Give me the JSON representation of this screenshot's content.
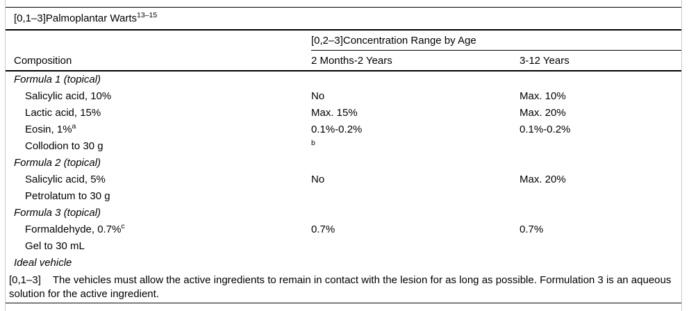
{
  "colors": {
    "background": "#ffffff",
    "text": "#000000",
    "rule": "#000000",
    "frame": "#c9c9c9"
  },
  "table": {
    "title": {
      "text": "[0,1–3]Palmoplantar Warts",
      "superscript": "13–15"
    },
    "header": {
      "spanner": "[0,2–3]Concentration Range by Age",
      "composition": "Composition",
      "age_col_1": "2 Months-2 Years",
      "age_col_2": "3-12 Years"
    },
    "rows": [
      {
        "type": "section",
        "label": "Formula 1 (topical)"
      },
      {
        "type": "item",
        "label": "Salicylic acid, 10%",
        "v1": "No",
        "v2": "Max. 10%"
      },
      {
        "type": "item",
        "label": "Lactic acid, 15%",
        "v1": "Max. 15%",
        "v2": "Max. 20%"
      },
      {
        "type": "item",
        "label": "Eosin, 1%",
        "sup": "a",
        "v1": "0.1%-0.2%",
        "v2": "0.1%-0.2%"
      },
      {
        "type": "item",
        "label": "Collodion to 30 g",
        "v1_sup": "b"
      },
      {
        "type": "section",
        "label": "Formula 2 (topical)"
      },
      {
        "type": "item",
        "label": "Salicylic acid, 5%",
        "v1": "No",
        "v2": "Max. 20%"
      },
      {
        "type": "item",
        "label": "Petrolatum to 30 g"
      },
      {
        "type": "section",
        "label": "Formula 3 (topical)"
      },
      {
        "type": "item",
        "label": "Formaldehyde, 0.7%",
        "sup": "c",
        "v1": "0.7%",
        "v2": "0.7%"
      },
      {
        "type": "item",
        "label": "Gel to 30 mL"
      },
      {
        "type": "section",
        "label": "Ideal vehicle"
      }
    ],
    "footnote": {
      "marker": "[0,1–3]",
      "text": "The vehicles must allow the active ingredients to remain in contact with the lesion for as long as possible. Formulation 3 is an aqueous solution for the active ingredient."
    }
  }
}
